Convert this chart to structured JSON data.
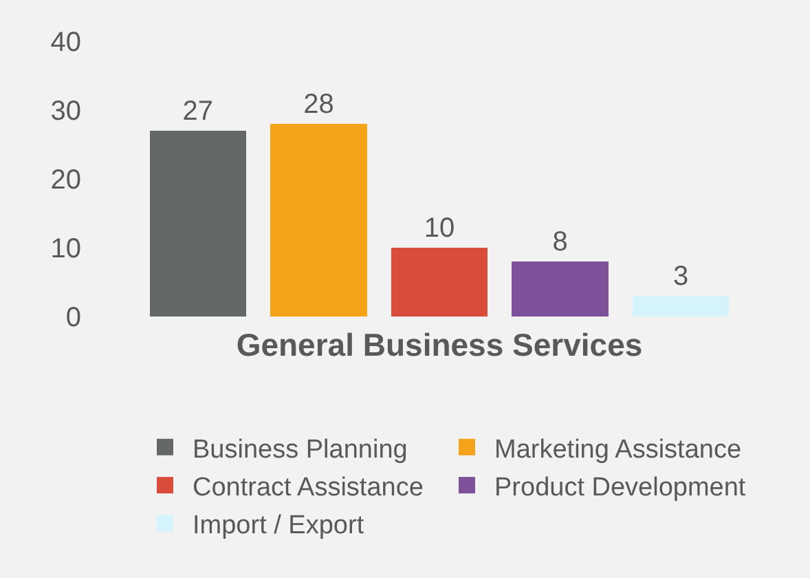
{
  "chart_data": {
    "type": "bar",
    "xlabel": "General Business Services",
    "stacked": true,
    "categories": [
      null,
      null,
      null,
      null,
      null
    ],
    "series": [
      {
        "name": "Business Planning",
        "color": "#636866",
        "values": [
          27,
          null,
          null,
          null,
          null
        ]
      },
      {
        "name": "Marketing Assistance",
        "color": "#f5a31a",
        "values": [
          null,
          28,
          null,
          null,
          null
        ]
      },
      {
        "name": "Contract Assistance",
        "color": "#d94b3a",
        "values": [
          null,
          null,
          10,
          null,
          null
        ]
      },
      {
        "name": "Product Development",
        "color": "#7e519a",
        "values": [
          null,
          null,
          null,
          8,
          null
        ]
      },
      {
        "name": "Import / Export",
        "color": "#d5f3fb",
        "values": [
          null,
          null,
          null,
          null,
          3
        ]
      }
    ],
    "ylim": [
      0,
      40
    ],
    "yticks": [
      0,
      10,
      20,
      30,
      40
    ],
    "grid": false,
    "legend": "bottom",
    "tick_labels": "y",
    "data_labels": true
  }
}
